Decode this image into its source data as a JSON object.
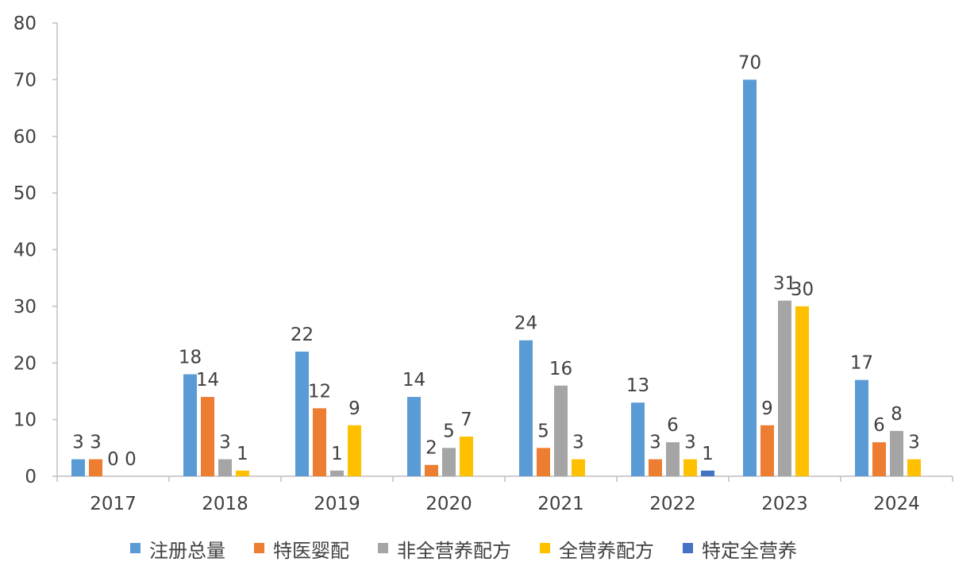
{
  "chart_data": {
    "type": "bar",
    "categories": [
      "2017",
      "2018",
      "2019",
      "2020",
      "2021",
      "2022",
      "2023",
      "2024"
    ],
    "series": [
      {
        "name": "注册总量",
        "color": "#5B9BD5",
        "values": [
          3,
          18,
          22,
          14,
          24,
          13,
          70,
          17
        ]
      },
      {
        "name": "特医婴配",
        "color": "#ED7D31",
        "values": [
          3,
          14,
          12,
          2,
          5,
          3,
          9,
          6
        ]
      },
      {
        "name": "非全营养配方",
        "color": "#A5A5A5",
        "values": [
          0,
          3,
          1,
          5,
          16,
          6,
          31,
          8
        ]
      },
      {
        "name": "全营养配方",
        "color": "#FFC000",
        "values": [
          0,
          1,
          9,
          7,
          3,
          3,
          30,
          3
        ]
      },
      {
        "name": "特定全营养",
        "color": "#4472C4",
        "values": [
          0,
          0,
          0,
          0,
          0,
          1,
          0,
          0
        ]
      }
    ],
    "ylim": [
      0,
      80
    ],
    "yticks": [
      0,
      10,
      20,
      30,
      40,
      50,
      60,
      70,
      80
    ],
    "xlabel": "",
    "ylabel": "",
    "title": "",
    "legend_position": "bottom",
    "data_labels": true,
    "grid": false
  }
}
